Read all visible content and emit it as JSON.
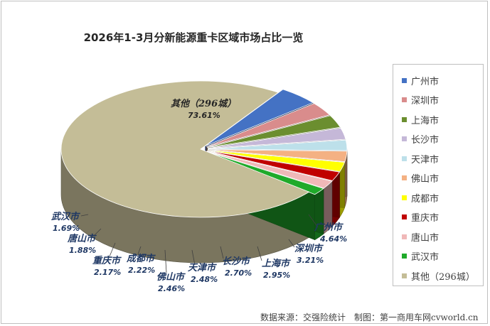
{
  "chart_data": {
    "type": "pie",
    "title": "2026年1-3月分新能源重卡区域市场占比一览",
    "categories": [
      "广州市",
      "深圳市",
      "上海市",
      "长沙市",
      "天津市",
      "佛山市",
      "成都市",
      "重庆市",
      "唐山市",
      "武汉市",
      "其他（296城）"
    ],
    "values": [
      4.64,
      3.21,
      2.95,
      2.7,
      2.48,
      2.46,
      2.22,
      2.17,
      1.88,
      1.69,
      73.61
    ],
    "data_labels": [
      "4.64%",
      "3.21%",
      "2.95%",
      "2.70%",
      "2.48%",
      "2.46%",
      "2.22%",
      "2.17%",
      "1.88%",
      "1.69%",
      "73.61%"
    ],
    "colors": [
      "#4472c4",
      "#d98c8c",
      "#6b8e2f",
      "#c5b8d8",
      "#bde0ea",
      "#f4b183",
      "#ffff00",
      "#c00000",
      "#f0b8b8",
      "#1faa2a",
      "#c4bd97"
    ],
    "legend": "right",
    "style": "3d-exploded-tilted"
  },
  "source_note": "数据来源：交强险统计　制图：第一商用车网cvworld.cn"
}
